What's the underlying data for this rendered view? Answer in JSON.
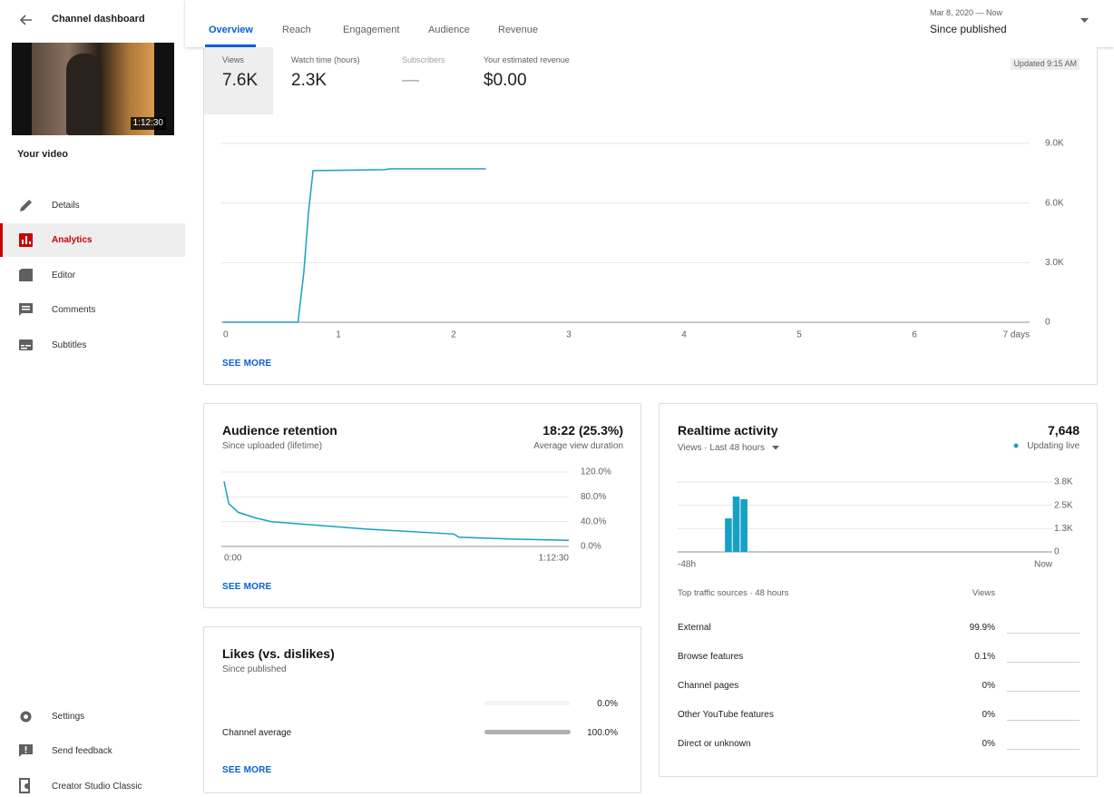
{
  "sidebar": {
    "title": "Channel dashboard",
    "duration": "1:12:30",
    "video_label": "Your video",
    "nav": [
      "Details",
      "Analytics",
      "Editor",
      "Comments",
      "Subtitles"
    ],
    "bottom": [
      "Settings",
      "Send feedback",
      "Creator Studio Classic"
    ]
  },
  "tabs": [
    "Overview",
    "Reach",
    "Engagement",
    "Audience",
    "Revenue"
  ],
  "date_range": {
    "range": "Mar 8, 2020 — Now",
    "label": "Since published"
  },
  "metrics": [
    {
      "label": "Views",
      "value": "7.6K"
    },
    {
      "label": "Watch time (hours)",
      "value": "2.3K"
    },
    {
      "label": "Subscribers",
      "value": "—"
    },
    {
      "label": "Your estimated revenue",
      "value": "$0.00"
    }
  ],
  "updated": "Updated 9:15 AM",
  "views_chart": {
    "type": "line",
    "color": "#1a9fc0",
    "x": [
      0,
      0.65,
      0.7,
      0.74,
      0.78,
      1.0,
      1.4,
      1.45,
      2.28
    ],
    "values": [
      0,
      0,
      2500,
      5500,
      7630,
      7650,
      7680,
      7720,
      7720
    ],
    "xlim": [
      0,
      7
    ],
    "xticks": [
      0,
      1,
      2,
      3,
      4,
      5,
      6,
      {
        "value": 7,
        "label": "7 days"
      }
    ],
    "ylim": [
      0,
      9000
    ],
    "yticks": [
      0,
      {
        "value": 3000,
        "label": "3.0K"
      },
      {
        "value": 6000,
        "label": "6.0K"
      },
      {
        "value": 9000,
        "label": "9.0K"
      }
    ],
    "grid": true,
    "see_more": "SEE MORE"
  },
  "retention": {
    "title": "Audience retention",
    "subtitle": "Since uploaded (lifetime)",
    "headline": "18:22 (25.3%)",
    "headline_label": "Average view duration",
    "chart": {
      "type": "line",
      "color": "#1a9fc0",
      "x": [
        0,
        60,
        180,
        400,
        600,
        1800,
        2900,
        2960,
        3600,
        4350
      ],
      "values": [
        105,
        69,
        55,
        46,
        40,
        28,
        20,
        15,
        12,
        10
      ],
      "xlim": [
        0,
        4350
      ],
      "xticks": [
        {
          "value": 0,
          "label": "0:00"
        },
        {
          "value": 4350,
          "label": "1:12:30"
        }
      ],
      "ylim": [
        0,
        120
      ],
      "yticks": [
        {
          "value": 0,
          "label": "0.0%"
        },
        {
          "value": 40,
          "label": "40.0%"
        },
        {
          "value": 80,
          "label": "80.0%"
        },
        {
          "value": 120,
          "label": "120.0%"
        }
      ],
      "grid": true
    },
    "see_more": "SEE MORE"
  },
  "likes": {
    "title": "Likes (vs. dislikes)",
    "subtitle": "Since published",
    "labels": [
      null,
      "Channel average"
    ],
    "values": [
      0,
      100
    ],
    "value_labels": [
      "0.0%",
      "100.0%"
    ],
    "xlim": [
      0,
      100
    ],
    "color": "#b0b0b0",
    "see_more": "SEE MORE"
  },
  "realtime": {
    "title": "Realtime activity",
    "total": "7,648",
    "subtitle": "Views · Last 48 hours",
    "status": "Updating live",
    "chart": {
      "type": "bar",
      "color": "#17a2c5",
      "categories": [
        "-48h",
        null,
        null,
        null,
        null,
        null,
        null,
        null,
        null,
        null,
        null,
        null,
        null,
        null,
        null,
        null,
        null,
        null,
        null,
        null,
        null,
        null,
        null,
        null,
        null,
        null,
        null,
        null,
        null,
        null,
        null,
        null,
        null,
        null,
        null,
        null,
        null,
        null,
        null,
        null,
        null,
        null,
        null,
        null,
        null,
        null,
        null,
        "Now"
      ],
      "values": [
        0,
        0,
        0,
        0,
        0,
        0,
        1800,
        2970,
        2830,
        20,
        10,
        5,
        5,
        5,
        0,
        0,
        5,
        0,
        0,
        0,
        0,
        0,
        5,
        0,
        0,
        5,
        0,
        0,
        0,
        0,
        5,
        0,
        0,
        0,
        0,
        0,
        0,
        0,
        0,
        0,
        0,
        0,
        0,
        0,
        0,
        0,
        0,
        0
      ],
      "ylim": [
        0,
        3750
      ],
      "yticks": [
        0,
        {
          "value": 1250,
          "label": "1.3K"
        },
        {
          "value": 2500,
          "label": "2.5K"
        },
        {
          "value": 3750,
          "label": "3.8K"
        }
      ],
      "grid": true
    },
    "traffic_title": "Top traffic sources · 48 hours",
    "traffic_column": "Views",
    "traffic": [
      {
        "label": "External",
        "value": "99.9%"
      },
      {
        "label": "Browse features",
        "value": "0.1%"
      },
      {
        "label": "Channel pages",
        "value": "0%"
      },
      {
        "label": "Other YouTube features",
        "value": "0%"
      },
      {
        "label": "Direct or unknown",
        "value": "0%"
      }
    ]
  }
}
